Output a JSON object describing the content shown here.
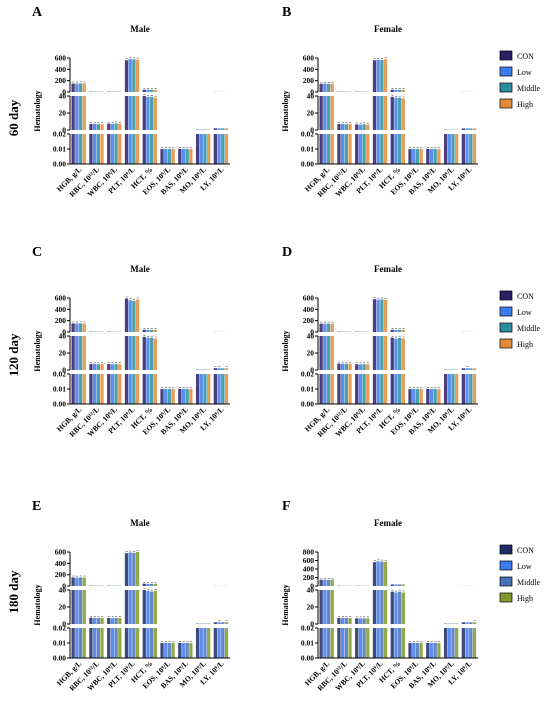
{
  "figure": {
    "row_labels": [
      "60 day",
      "120 day",
      "180 day"
    ],
    "legend_row_index": 0
  },
  "colors": {
    "CON": "#2b1f66",
    "Low": "#3d7bef",
    "Middle": "#2c8fa0",
    "High_orange": "#e38b3a",
    "High_olive": "#7e9a2c"
  },
  "chart_data": [
    {
      "panel": "A",
      "title": "Male",
      "type": "bar",
      "ylabel": "Hematology",
      "categories": [
        "HGB, g/L",
        "RBC, 10¹²/L",
        "WBC, 10⁹/L",
        "PLT, 10⁹/L",
        "HCT, %",
        "EOS, 10⁹/L",
        "BAS, 10⁹/L",
        "MO, 10⁹/L",
        "LY, 10⁹/L"
      ],
      "segments": [
        {
          "ylim": [
            0,
            0.02
          ],
          "ticks": [
            "0.00",
            "0.01",
            "0.02"
          ]
        },
        {
          "ylim": [
            0,
            40
          ],
          "ticks": [
            "0",
            "20",
            "40"
          ]
        },
        {
          "ylim": [
            0,
            600
          ],
          "ticks": [
            "0",
            "200",
            "400",
            "600"
          ]
        }
      ],
      "legend": [
        "CON",
        "Low",
        "Middle",
        "High"
      ],
      "legend_colors": [
        "#2b1f66",
        "#3d7bef",
        "#2c8fa0",
        "#e38b3a"
      ],
      "series": [
        {
          "name": "CON",
          "values": [
            150,
            7,
            7.5,
            560,
            40,
            0.01,
            0.01,
            0.5,
            2.0
          ]
        },
        {
          "name": "Low",
          "values": [
            148,
            7.1,
            7.2,
            580,
            39,
            0.01,
            0.01,
            0.5,
            1.9
          ]
        },
        {
          "name": "Middle",
          "values": [
            152,
            7,
            7.8,
            575,
            39,
            0.01,
            0.01,
            0.5,
            2.0
          ]
        },
        {
          "name": "High",
          "values": [
            149,
            6.9,
            7.4,
            570,
            38,
            0.01,
            0.01,
            0.5,
            2.0
          ]
        }
      ]
    },
    {
      "panel": "B",
      "title": "Female",
      "type": "bar",
      "ylabel": "Hematology",
      "categories": [
        "HGB, g/L",
        "RBC, 10¹²/L",
        "WBC, 10⁹/L",
        "PLT, 10⁹/L",
        "HCT, %",
        "EOS, 10⁹/L",
        "BAS, 10⁹/L",
        "MO, 10⁹/L",
        "LY, 10⁹/L"
      ],
      "segments": [
        {
          "ylim": [
            0,
            0.02
          ],
          "ticks": [
            "0.00",
            "0.01",
            "0.02"
          ]
        },
        {
          "ylim": [
            0,
            40
          ],
          "ticks": [
            "0",
            "20",
            "40"
          ]
        },
        {
          "ylim": [
            0,
            600
          ],
          "ticks": [
            "0",
            "200",
            "400",
            "600"
          ]
        }
      ],
      "legend": [],
      "series": [
        {
          "name": "CON",
          "values": [
            145,
            7,
            6.5,
            560,
            39,
            0.01,
            0.01,
            0.4,
            1.8
          ]
        },
        {
          "name": "Low",
          "values": [
            146,
            7,
            6.3,
            570,
            38,
            0.01,
            0.01,
            0.4,
            1.9
          ]
        },
        {
          "name": "Middle",
          "values": [
            144,
            6.9,
            6.6,
            565,
            38,
            0.01,
            0.01,
            0.4,
            1.8
          ]
        },
        {
          "name": "High",
          "values": [
            147,
            7,
            6.4,
            580,
            37,
            0.01,
            0.01,
            0.4,
            1.9
          ]
        }
      ]
    },
    {
      "panel": "C",
      "title": "Male",
      "type": "bar",
      "ylabel": "Hematology",
      "categories": [
        "HGB, g/L",
        "RBC, 10¹²/L",
        "WBC, 10⁹/L",
        "PLT, 10⁹/L",
        "HCT, %",
        "EOS, 10⁹/L",
        "BAS, 10⁹/L",
        "MO, 10⁹/L",
        "LY, 10⁹/L"
      ],
      "segments": [
        {
          "ylim": [
            0,
            0.02
          ],
          "ticks": [
            "0.00",
            "0.01",
            "0.02"
          ]
        },
        {
          "ylim": [
            0,
            40
          ],
          "ticks": [
            "0",
            "20",
            "40"
          ]
        },
        {
          "ylim": [
            0,
            600
          ],
          "ticks": [
            "0",
            "200",
            "400",
            "600"
          ]
        }
      ],
      "legend": [
        "CON",
        "Low",
        "Middle",
        "High"
      ],
      "legend_colors": [
        "#2b1f66",
        "#3d7bef",
        "#2c8fa0",
        "#e38b3a"
      ],
      "series": [
        {
          "name": "CON",
          "values": [
            152,
            7.2,
            7.0,
            590,
            39,
            0.01,
            0.01,
            0.5,
            2.2
          ]
        },
        {
          "name": "Low",
          "values": [
            150,
            7.1,
            6.8,
            560,
            38,
            0.01,
            0.01,
            0.5,
            2.1
          ]
        },
        {
          "name": "Middle",
          "values": [
            153,
            7.0,
            7.1,
            550,
            38,
            0.01,
            0.01,
            0.5,
            2.0
          ]
        },
        {
          "name": "High",
          "values": [
            151,
            7.1,
            6.9,
            575,
            37,
            0.01,
            0.01,
            0.5,
            2.1
          ]
        }
      ]
    },
    {
      "panel": "D",
      "title": "Female",
      "type": "bar",
      "ylabel": "Hematology",
      "categories": [
        "HGB, g/L",
        "RBC, 10¹²/L",
        "WBC, 10⁹/L",
        "PLT, 10⁹/L",
        "HCT, %",
        "EOS, 10⁹/L",
        "BAS, 10⁹/L",
        "MO, 10⁹/L",
        "LY, 10⁹/L"
      ],
      "segments": [
        {
          "ylim": [
            0,
            0.02
          ],
          "ticks": [
            "0.00",
            "0.01",
            "0.02"
          ]
        },
        {
          "ylim": [
            0,
            40
          ],
          "ticks": [
            "0",
            "20",
            "40"
          ]
        },
        {
          "ylim": [
            0,
            600
          ],
          "ticks": [
            "0",
            "200",
            "400",
            "600"
          ]
        }
      ],
      "legend": [],
      "series": [
        {
          "name": "CON",
          "values": [
            148,
            7.5,
            6.8,
            580,
            38,
            0.01,
            0.01,
            0.5,
            2.0
          ]
        },
        {
          "name": "Low",
          "values": [
            146,
            7.4,
            6.6,
            570,
            37,
            0.01,
            0.01,
            0.5,
            2.1
          ]
        },
        {
          "name": "Middle",
          "values": [
            150,
            7.3,
            6.9,
            575,
            38,
            0.01,
            0.01,
            0.5,
            1.9
          ]
        },
        {
          "name": "High",
          "values": [
            147,
            7.4,
            6.7,
            565,
            37,
            0.01,
            0.01,
            0.5,
            2.0
          ]
        }
      ]
    },
    {
      "panel": "E",
      "title": "Male",
      "type": "bar",
      "ylabel": "Hematology",
      "categories": [
        "HGB, g/L",
        "RBC, 10¹²/L",
        "WBC, 10⁹/L",
        "PLT, 10⁹/L",
        "HCT, %",
        "EOS, 10⁹/L",
        "BAS, 10⁹/L",
        "MO, 10⁹/L",
        "LY, 10⁹/L"
      ],
      "segments": [
        {
          "ylim": [
            0,
            0.02
          ],
          "ticks": [
            "0.00",
            "0.01",
            "0.02"
          ]
        },
        {
          "ylim": [
            0,
            40
          ],
          "ticks": [
            "0",
            "20",
            "40"
          ]
        },
        {
          "ylim": [
            0,
            600
          ],
          "ticks": [
            "0",
            "200",
            "400",
            "600"
          ]
        }
      ],
      "legend": [
        "CON",
        "Low",
        "Middle",
        "High"
      ],
      "legend_colors": [
        "#1f2a66",
        "#3d7bef",
        "#4a72b8",
        "#7e9a2c"
      ],
      "series": [
        {
          "name": "CON",
          "values": [
            150,
            7.3,
            7.0,
            580,
            40,
            0.01,
            0.01,
            0.5,
            2.0
          ]
        },
        {
          "name": "Low",
          "values": [
            148,
            7.2,
            6.9,
            590,
            39,
            0.01,
            0.01,
            0.5,
            2.1
          ]
        },
        {
          "name": "Middle",
          "values": [
            151,
            7.1,
            7.1,
            585,
            38,
            0.01,
            0.01,
            0.5,
            2.0
          ]
        },
        {
          "name": "High",
          "values": [
            149,
            7.2,
            7.0,
            600,
            39,
            0.01,
            0.01,
            0.5,
            2.2
          ]
        }
      ]
    },
    {
      "panel": "F",
      "title": "Female",
      "type": "bar",
      "ylabel": "Hematology",
      "categories": [
        "HGB, g/L",
        "RBC, 10¹²/L",
        "WBC, 10⁹/L",
        "PLT, 10⁹/L",
        "HCT, %",
        "EOS, 10⁹/L",
        "BAS, 10⁹/L",
        "MO, 10⁹/L",
        "LY, 10⁹/L"
      ],
      "segments": [
        {
          "ylim": [
            0,
            0.02
          ],
          "ticks": [
            "0.00",
            "0.01",
            "0.02"
          ]
        },
        {
          "ylim": [
            0,
            40
          ],
          "ticks": [
            "0",
            "20",
            "40"
          ]
        },
        {
          "ylim": [
            0,
            800
          ],
          "ticks": [
            "0",
            "200",
            "400",
            "600",
            "800"
          ]
        }
      ],
      "legend": [],
      "series": [
        {
          "name": "CON",
          "values": [
            146,
            7.1,
            6.6,
            560,
            38,
            0.01,
            0.01,
            0.5,
            2.0
          ]
        },
        {
          "name": "Low",
          "values": [
            147,
            7.0,
            6.5,
            580,
            37,
            0.01,
            0.01,
            0.5,
            1.9
          ]
        },
        {
          "name": "Middle",
          "values": [
            145,
            7.1,
            6.7,
            575,
            38,
            0.01,
            0.01,
            0.5,
            2.0
          ]
        },
        {
          "name": "High",
          "values": [
            148,
            7.0,
            6.6,
            570,
            37,
            0.01,
            0.01,
            0.5,
            2.1
          ]
        }
      ]
    }
  ]
}
